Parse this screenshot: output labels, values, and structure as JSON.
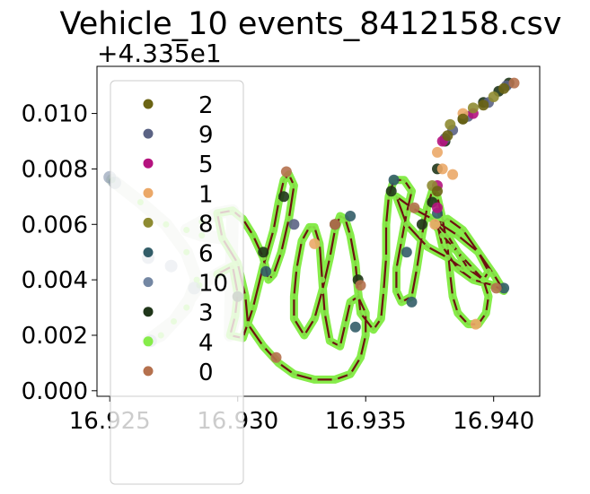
{
  "chart_data": {
    "type": "scatter",
    "title": "Vehicle_10 events_8412158.csv",
    "xlabel": "",
    "ylabel": "",
    "y_offset_label": "+4.335e1",
    "xlim": [
      16.9245,
      16.9418
    ],
    "ylim": [
      -0.0002,
      0.0117
    ],
    "x_ticks": [
      16.925,
      16.93,
      16.935,
      16.94
    ],
    "x_tick_labels": [
      "16.925",
      "16.930",
      "16.935",
      "16.940"
    ],
    "y_ticks": [
      0.0,
      0.002,
      0.004,
      0.006,
      0.008,
      0.01
    ],
    "y_tick_labels": [
      "0.000",
      "0.002",
      "0.004",
      "0.006",
      "0.008",
      "0.010"
    ],
    "grid": false,
    "legend_position": "upper-left",
    "legend": [
      {
        "label": "2",
        "color": "#6b6414"
      },
      {
        "label": "9",
        "color": "#5b6384"
      },
      {
        "label": "5",
        "color": "#b5137f"
      },
      {
        "label": "1",
        "color": "#eba868"
      },
      {
        "label": "8",
        "color": "#8e8b32"
      },
      {
        "label": "6",
        "color": "#335d68"
      },
      {
        "label": "10",
        "color": "#7487a3"
      },
      {
        "label": "3",
        "color": "#20361a"
      },
      {
        "label": "4",
        "color": "#86ec4a"
      },
      {
        "label": "0",
        "color": "#b5714e"
      }
    ],
    "series": [
      {
        "label": "4",
        "color": "#86ec4a",
        "points": [
          [
            16.9251,
            0.0076
          ],
          [
            16.9262,
            0.0068
          ],
          [
            16.9272,
            0.006
          ],
          [
            16.928,
            0.005
          ],
          [
            16.9284,
            0.004
          ],
          [
            16.928,
            0.003
          ],
          [
            16.927,
            0.002
          ],
          [
            16.9265,
            0.0018
          ],
          [
            16.9275,
            0.0025
          ],
          [
            16.9285,
            0.0038
          ],
          [
            16.9292,
            0.0042
          ],
          [
            16.9298,
            0.0045
          ],
          [
            16.93,
            0.0035
          ],
          [
            16.9299,
            0.0027
          ],
          [
            16.9297,
            0.002
          ],
          [
            16.9302,
            0.0019
          ],
          [
            16.9306,
            0.003
          ],
          [
            16.931,
            0.0045
          ],
          [
            16.9314,
            0.0058
          ],
          [
            16.9316,
            0.0068
          ],
          [
            16.9318,
            0.0076
          ],
          [
            16.932,
            0.0078
          ],
          [
            16.9322,
            0.0074
          ],
          [
            16.932,
            0.0062
          ],
          [
            16.9317,
            0.005
          ],
          [
            16.9314,
            0.0042
          ],
          [
            16.9312,
            0.004
          ],
          [
            16.931,
            0.0048
          ],
          [
            16.9306,
            0.0056
          ],
          [
            16.9302,
            0.0062
          ],
          [
            16.9298,
            0.0065
          ],
          [
            16.9292,
            0.0064
          ],
          [
            16.9286,
            0.0061
          ],
          [
            16.928,
            0.0058
          ],
          [
            16.9286,
            0.0056
          ],
          [
            16.9294,
            0.0055
          ],
          [
            16.93,
            0.0046
          ],
          [
            16.9303,
            0.0034
          ],
          [
            16.9304,
            0.0024
          ],
          [
            16.931,
            0.0016
          ],
          [
            16.9316,
            0.001
          ],
          [
            16.9322,
            0.0006
          ],
          [
            16.933,
            0.0004
          ],
          [
            16.9338,
            0.0004
          ],
          [
            16.9344,
            0.0006
          ],
          [
            16.9348,
            0.0012
          ],
          [
            16.935,
            0.002
          ],
          [
            16.935,
            0.0028
          ],
          [
            16.9347,
            0.0034
          ],
          [
            16.9344,
            0.0032
          ],
          [
            16.9342,
            0.0024
          ],
          [
            16.934,
            0.0016
          ],
          [
            16.9336,
            0.0018
          ],
          [
            16.9334,
            0.0028
          ],
          [
            16.9333,
            0.004
          ],
          [
            16.9332,
            0.0053
          ],
          [
            16.933,
            0.0059
          ],
          [
            16.9328,
            0.0059
          ],
          [
            16.9325,
            0.0054
          ],
          [
            16.9323,
            0.0044
          ],
          [
            16.9322,
            0.0034
          ],
          [
            16.9322,
            0.0026
          ],
          [
            16.9326,
            0.002
          ],
          [
            16.933,
            0.0026
          ],
          [
            16.9333,
            0.0036
          ],
          [
            16.9336,
            0.0048
          ],
          [
            16.9338,
            0.0058
          ],
          [
            16.934,
            0.0063
          ],
          [
            16.9342,
            0.0062
          ],
          [
            16.9344,
            0.0056
          ],
          [
            16.9346,
            0.0046
          ],
          [
            16.9347,
            0.0036
          ],
          [
            16.9348,
            0.0028
          ],
          [
            16.9353,
            0.0022
          ],
          [
            16.9356,
            0.0026
          ],
          [
            16.9357,
            0.0036
          ],
          [
            16.9358,
            0.0048
          ],
          [
            16.9358,
            0.006
          ],
          [
            16.9359,
            0.007
          ],
          [
            16.9361,
            0.0076
          ],
          [
            16.9365,
            0.0076
          ],
          [
            16.9368,
            0.0072
          ],
          [
            16.9366,
            0.0064
          ],
          [
            16.9364,
            0.0054
          ],
          [
            16.9362,
            0.0044
          ],
          [
            16.9362,
            0.0036
          ],
          [
            16.9364,
            0.0032
          ],
          [
            16.9368,
            0.0034
          ],
          [
            16.937,
            0.0044
          ],
          [
            16.9372,
            0.0056
          ],
          [
            16.9374,
            0.0066
          ],
          [
            16.9376,
            0.0072
          ],
          [
            16.9378,
            0.007
          ],
          [
            16.938,
            0.0062
          ],
          [
            16.9382,
            0.0052
          ],
          [
            16.9383,
            0.0042
          ],
          [
            16.9384,
            0.0034
          ],
          [
            16.9386,
            0.0028
          ],
          [
            16.939,
            0.0024
          ],
          [
            16.9394,
            0.0024
          ],
          [
            16.9397,
            0.0028
          ],
          [
            16.9398,
            0.0034
          ],
          [
            16.9396,
            0.004
          ],
          [
            16.9392,
            0.0044
          ],
          [
            16.9388,
            0.0048
          ],
          [
            16.9384,
            0.0052
          ],
          [
            16.938,
            0.0056
          ],
          [
            16.9377,
            0.006
          ],
          [
            16.9382,
            0.0062
          ],
          [
            16.9388,
            0.0058
          ],
          [
            16.9394,
            0.005
          ],
          [
            16.9398,
            0.0043
          ],
          [
            16.9396,
            0.004
          ],
          [
            16.939,
            0.0044
          ],
          [
            16.9386,
            0.005
          ],
          [
            16.9382,
            0.0056
          ],
          [
            16.9378,
            0.006
          ],
          [
            16.938,
            0.0052
          ],
          [
            16.9386,
            0.0044
          ],
          [
            16.9392,
            0.004
          ],
          [
            16.94,
            0.0038
          ],
          [
            16.9404,
            0.0036
          ],
          [
            16.94,
            0.0042
          ],
          [
            16.9394,
            0.005
          ],
          [
            16.9386,
            0.0056
          ],
          [
            16.9376,
            0.0062
          ],
          [
            16.9368,
            0.0066
          ],
          [
            16.9362,
            0.007
          ],
          [
            16.9366,
            0.006
          ],
          [
            16.9374,
            0.0052
          ],
          [
            16.9382,
            0.0048
          ],
          [
            16.9388,
            0.0044
          ]
        ]
      },
      {
        "label": "3",
        "color": "#20361a",
        "points": [
          [
            16.93,
            0.0034
          ],
          [
            16.931,
            0.005
          ],
          [
            16.9318,
            0.007
          ],
          [
            16.9338,
            0.006
          ],
          [
            16.9347,
            0.004
          ],
          [
            16.936,
            0.0072
          ],
          [
            16.9372,
            0.006
          ],
          [
            16.9376,
            0.0068
          ],
          [
            16.9378,
            0.008
          ],
          [
            16.9381,
            0.009
          ],
          [
            16.9388,
            0.0098
          ],
          [
            16.9396,
            0.0104
          ],
          [
            16.9402,
            0.0108
          ],
          [
            16.9406,
            0.0111
          ]
        ]
      },
      {
        "label": "10",
        "color": "#7487a3",
        "points": [
          [
            16.925,
            0.0077
          ],
          [
            16.9265,
            0.0048
          ],
          [
            16.9283,
            0.0037
          ],
          [
            16.9274,
            0.0045
          ],
          [
            16.9266,
            0.0018
          ],
          [
            16.9252,
            0.0075
          ]
        ]
      },
      {
        "label": "6",
        "color": "#335d68",
        "points": [
          [
            16.9311,
            0.0043
          ],
          [
            16.9346,
            0.0023
          ],
          [
            16.9361,
            0.0076
          ],
          [
            16.9368,
            0.0032
          ],
          [
            16.9404,
            0.0037
          ],
          [
            16.9344,
            0.0063
          ],
          [
            16.9378,
            0.0064
          ],
          [
            16.9366,
            0.005
          ]
        ]
      },
      {
        "label": "9",
        "color": "#5b6384",
        "points": [
          [
            16.9381,
            0.0091
          ],
          [
            16.9384,
            0.0094
          ],
          [
            16.939,
            0.0099
          ],
          [
            16.9398,
            0.0104
          ],
          [
            16.9405,
            0.011
          ],
          [
            16.9322,
            0.006
          ]
        ]
      },
      {
        "label": "5",
        "color": "#b5137f",
        "points": [
          [
            16.938,
            0.009
          ],
          [
            16.9392,
            0.01
          ],
          [
            16.9378,
            0.0066
          ],
          [
            16.9378,
            0.0074
          ]
        ]
      },
      {
        "label": "1",
        "color": "#eba868",
        "points": [
          [
            16.938,
            0.008
          ],
          [
            16.9384,
            0.0078
          ],
          [
            16.9393,
            0.0024
          ],
          [
            16.9377,
            0.006
          ],
          [
            16.933,
            0.0053
          ],
          [
            16.9388,
            0.01
          ],
          [
            16.9378,
            0.0086
          ]
        ]
      },
      {
        "label": "8",
        "color": "#8e8b32",
        "points": [
          [
            16.9383,
            0.0096
          ],
          [
            16.9392,
            0.0102
          ],
          [
            16.94,
            0.0106
          ],
          [
            16.9376,
            0.0074
          ]
        ]
      },
      {
        "label": "0",
        "color": "#b5714e",
        "points": [
          [
            16.9319,
            0.0079
          ],
          [
            16.9348,
            0.0038
          ],
          [
            16.9338,
            0.006
          ],
          [
            16.9369,
            0.0066
          ],
          [
            16.9315,
            0.0012
          ],
          [
            16.9401,
            0.0037
          ],
          [
            16.9408,
            0.0111
          ]
        ]
      },
      {
        "label": "2",
        "color": "#6b6414",
        "points": [
          [
            16.9382,
            0.0092
          ],
          [
            16.9388,
            0.0098
          ],
          [
            16.9396,
            0.0103
          ],
          [
            16.9404,
            0.0109
          ],
          [
            16.9378,
            0.0072
          ]
        ]
      }
    ]
  }
}
